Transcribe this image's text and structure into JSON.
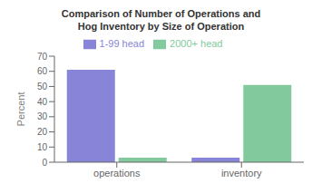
{
  "chart_data": {
    "type": "bar",
    "title": "Comparison of Number of Operations and\nHog Inventory by Size of Operation",
    "categories": [
      "operations",
      "inventory"
    ],
    "series": [
      {
        "name": "1-99 head",
        "color": "#8884d8",
        "values": [
          61,
          3
        ]
      },
      {
        "name": "2000+ head",
        "color": "#82ca9d",
        "values": [
          3,
          51
        ]
      }
    ],
    "ylabel": "Percent",
    "ylim": [
      0,
      70
    ],
    "yticks": [
      0,
      10,
      20,
      30,
      40,
      50,
      60,
      70
    ],
    "grid": false,
    "legend": "top"
  }
}
